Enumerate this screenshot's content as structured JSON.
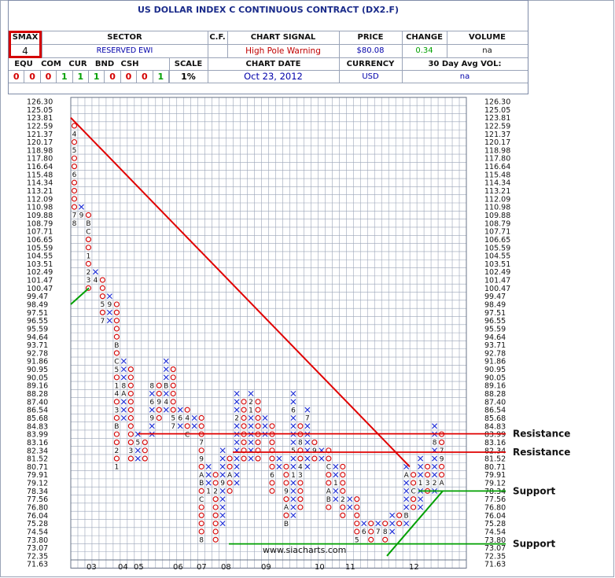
{
  "header": {
    "title": "US DOLLAR INDEX C CONTINUOUS CONTRACT (DX2.F)",
    "smax_label": "SMAX",
    "smax_value": "4",
    "sector_label": "SECTOR",
    "sector_value": "RESERVED EWI",
    "cf_label": "C.F.",
    "signal_label": "CHART SIGNAL",
    "signal_value": "High Pole Warning",
    "price_label": "PRICE",
    "price_value": "$80.08",
    "change_label": "CHANGE",
    "change_value": "0.34",
    "volume_label": "VOLUME",
    "volume_value": "na",
    "asset_labels": [
      "EQU",
      "COM",
      "CUR",
      "BND",
      "CSH"
    ],
    "asset_values": [
      "0",
      "0",
      "0",
      "1",
      "1",
      "1",
      "0",
      "0",
      "0",
      "1"
    ],
    "scale_label": "SCALE",
    "scale_value": "1%",
    "date_label": "CHART DATE",
    "date_value": "Oct 23, 2012",
    "currency_label": "CURRENCY",
    "currency_value": "USD",
    "avgvol_label": "30 Day Avg VOL:",
    "avgvol_value": "na"
  },
  "colors": {
    "o_mark": "#d40000",
    "x_mark": "#1a2bd6",
    "trend_red": "#e00000",
    "trend_green": "#00a000",
    "resistance": "#e00000",
    "support": "#00a000",
    "grid": "#9aa4b8",
    "change_text": "#00a000",
    "signal_text": "#c00000"
  },
  "chart_data": {
    "type": "point-and-figure",
    "box_scale": "1%",
    "price_levels": [
      "126.30",
      "125.05",
      "123.81",
      "122.59",
      "121.37",
      "120.17",
      "118.98",
      "117.80",
      "116.64",
      "115.48",
      "114.34",
      "113.21",
      "112.09",
      "110.98",
      "109.88",
      "108.79",
      "107.71",
      "106.65",
      "105.59",
      "104.55",
      "103.51",
      "102.49",
      "101.47",
      "100.47",
      "99.47",
      "98.49",
      "97.51",
      "96.55",
      "95.59",
      "94.64",
      "93.71",
      "92.78",
      "91.86",
      "90.95",
      "90.05",
      "89.16",
      "88.28",
      "87.40",
      "86.54",
      "85.68",
      "84.83",
      "83.99",
      "83.16",
      "82.34",
      "81.52",
      "80.71",
      "79.91",
      "79.12",
      "78.34",
      "77.56",
      "76.80",
      "76.04",
      "75.28",
      "74.54",
      "73.80",
      "73.07",
      "72.35",
      "71.63"
    ],
    "x_axis_labels": [
      "03",
      "04",
      "05",
      "06",
      "07",
      "08",
      "09",
      "10",
      "11",
      "12"
    ],
    "columns": [
      {
        "type": "O",
        "top": "122.59",
        "bottom": "108.79",
        "markers": {
          "121.37": "4",
          "118.98": "5",
          "115.48": "6",
          "109.88": "7",
          "108.79": "8"
        }
      },
      {
        "type": "X",
        "top": "110.98",
        "bottom": "109.88",
        "markers": {
          "109.88": "9"
        }
      },
      {
        "type": "O",
        "top": "109.88",
        "bottom": "100.47",
        "markers": {
          "108.79": "B",
          "107.71": "C",
          "104.55": "1",
          "102.49": "2",
          "101.47": "3"
        }
      },
      {
        "type": "X",
        "top": "102.49",
        "bottom": "101.47",
        "markers": {
          "101.47": "4"
        }
      },
      {
        "type": "O",
        "top": "101.47",
        "bottom": "96.55",
        "markers": {
          "98.49": "5",
          "96.55": "7"
        }
      },
      {
        "type": "X",
        "top": "99.47",
        "bottom": "96.55",
        "markers": {
          "98.49": "9"
        }
      },
      {
        "type": "O",
        "top": "98.49",
        "bottom": "80.71",
        "markers": {
          "93.71": "B",
          "91.86": "C",
          "90.95": "5",
          "89.16": "1",
          "88.28": "4",
          "86.54": "3",
          "84.83": "B",
          "82.34": "2",
          "80.71": "1"
        }
      },
      {
        "type": "X",
        "top": "91.86",
        "bottom": "85.68",
        "markers": {
          "89.16": "8",
          "88.28": "A"
        }
      },
      {
        "type": "O",
        "top": "90.95",
        "bottom": "81.52",
        "markers": {
          "82.34": "3"
        }
      },
      {
        "type": "X",
        "top": "83.99",
        "bottom": "81.52",
        "markers": {
          "83.16": "5"
        }
      },
      {
        "type": "O",
        "top": "83.16",
        "bottom": "81.52"
      },
      {
        "type": "X",
        "top": "89.16",
        "bottom": "83.99",
        "markers": {
          "89.16": "8",
          "87.40": "6",
          "85.68": "9"
        }
      },
      {
        "type": "O",
        "top": "89.16",
        "bottom": "85.68",
        "markers": {
          "87.40": "9"
        }
      },
      {
        "type": "X",
        "top": "91.86",
        "bottom": "86.54",
        "markers": {
          "89.16": "B",
          "87.40": "4"
        }
      },
      {
        "type": "O",
        "top": "90.95",
        "bottom": "84.83",
        "markers": {
          "85.68": "5",
          "84.83": "7"
        }
      },
      {
        "type": "X",
        "top": "86.54",
        "bottom": "84.83",
        "markers": {
          "85.68": "6"
        }
      },
      {
        "type": "O",
        "top": "86.54",
        "bottom": "83.99",
        "markers": {
          "85.68": "4",
          "83.99": "C"
        }
      },
      {
        "type": "X",
        "top": "85.68",
        "bottom": "84.83"
      },
      {
        "type": "O",
        "top": "85.68",
        "bottom": "73.80",
        "markers": {
          "83.16": "7",
          "81.52": "9",
          "79.91": "A",
          "79.12": "B",
          "77.56": "C",
          "73.80": "8"
        }
      },
      {
        "type": "X",
        "top": "80.71",
        "bottom": "78.34",
        "markers": {
          "78.34": "1"
        }
      },
      {
        "type": "O",
        "top": "79.91",
        "bottom": "73.80",
        "markers": {
          "78.34": "2"
        }
      },
      {
        "type": "X",
        "top": "82.34",
        "bottom": "75.28",
        "markers": {
          "79.12": "9"
        }
      },
      {
        "type": "O",
        "top": "81.52",
        "bottom": "78.34",
        "markers": {
          "79.91": "A"
        }
      },
      {
        "type": "X",
        "top": "88.28",
        "bottom": "79.12",
        "markers": {
          "85.68": "2"
        }
      },
      {
        "type": "O",
        "top": "87.40",
        "bottom": "81.52",
        "markers": {
          "88.28": "3"
        }
      },
      {
        "type": "X",
        "top": "88.28",
        "bottom": "81.52",
        "markers": {
          "87.40": "2",
          "86.54": "1"
        }
      },
      {
        "type": "O",
        "top": "87.40",
        "bottom": "81.52"
      },
      {
        "type": "X",
        "top": "85.68",
        "bottom": "83.99"
      },
      {
        "type": "O",
        "top": "84.83",
        "bottom": "78.34",
        "markers": {
          "79.91": "6"
        }
      },
      {
        "type": "X",
        "top": "81.52",
        "bottom": "80.71",
        "markers": {
          "79.91": "7"
        }
      },
      {
        "type": "O",
        "top": "80.71",
        "bottom": "75.28",
        "markers": {
          "78.34": "9",
          "76.80": "A",
          "75.28": "B",
          "74.54": "C"
        }
      },
      {
        "type": "X",
        "top": "88.28",
        "bottom": "76.04",
        "markers": {
          "79.91": "1",
          "86.54": "6",
          "82.34": "5"
        }
      },
      {
        "type": "O",
        "top": "84.83",
        "bottom": "76.80",
        "markers": {
          "79.91": "3",
          "80.71": "4",
          "83.16": "8"
        }
      },
      {
        "type": "X",
        "top": "86.54",
        "bottom": "80.71",
        "markers": {
          "85.68": "7"
        }
      },
      {
        "type": "O",
        "top": "83.16",
        "bottom": "81.52",
        "markers": {
          "82.34": "9"
        }
      },
      {
        "type": "X",
        "top": "82.34",
        "bottom": "81.52"
      },
      {
        "type": "O",
        "top": "82.34",
        "bottom": "76.80",
        "markers": {
          "80.71": "C",
          "78.34": "A",
          "77.56": "B"
        }
      },
      {
        "type": "X",
        "top": "80.71",
        "bottom": "77.56",
        "markers": {
          "79.12": "1"
        }
      },
      {
        "type": "O",
        "top": "80.71",
        "bottom": "76.04",
        "markers": {
          "77.56": "2"
        }
      },
      {
        "type": "X",
        "top": "77.56",
        "bottom": "76.80"
      },
      {
        "type": "O",
        "top": "77.56",
        "bottom": "73.80",
        "markers": {
          "73.80": "5"
        }
      },
      {
        "type": "X",
        "top": "75.28",
        "bottom": "74.54",
        "markers": {
          "74.54": "6"
        }
      },
      {
        "type": "O",
        "top": "75.28",
        "bottom": "73.80"
      },
      {
        "type": "X",
        "top": "75.28",
        "bottom": "74.54",
        "markers": {
          "74.54": "7"
        }
      },
      {
        "type": "O",
        "top": "75.28",
        "bottom": "73.80",
        "markers": {
          "74.54": "8"
        }
      },
      {
        "type": "X",
        "top": "76.04",
        "bottom": "74.54",
        "markers": {
          "73.80": "9"
        }
      },
      {
        "type": "O",
        "top": "76.04",
        "bottom": "75.28"
      },
      {
        "type": "X",
        "top": "80.71",
        "bottom": "75.28",
        "markers": {
          "79.91": "A",
          "76.04": "B"
        }
      },
      {
        "type": "O",
        "top": "79.91",
        "bottom": "76.80",
        "markers": {
          "78.34": "C"
        }
      },
      {
        "type": "X",
        "top": "81.52",
        "bottom": "76.80",
        "markers": {
          "79.12": "1"
        }
      },
      {
        "type": "O",
        "top": "80.71",
        "bottom": "78.34",
        "markers": {
          "79.12": "3"
        }
      },
      {
        "type": "X",
        "top": "84.83",
        "bottom": "78.34",
        "markers": {
          "79.12": "2",
          "83.16": "8"
        }
      },
      {
        "type": "O",
        "top": "83.99",
        "bottom": "79.12",
        "markers": {
          "82.34": "7",
          "81.52": "9",
          "79.12": "A"
        }
      }
    ],
    "trendlines": [
      {
        "color": "red",
        "from": "123.81",
        "to": "80.71",
        "direction": "down"
      },
      {
        "color": "green",
        "from": "98.49",
        "to": "100.47",
        "direction": "up"
      },
      {
        "color": "green",
        "from": "72.35",
        "to": "78.34",
        "direction": "up"
      }
    ],
    "levels": [
      {
        "label": "Resistance",
        "value": "84.03"
      },
      {
        "label": "Resistance",
        "value": "82.16"
      },
      {
        "label": "Support",
        "value": "78.34"
      },
      {
        "label": "Support",
        "value": "73.42"
      }
    ],
    "watermark": "www.siacharts.com",
    "title": "US DOLLAR INDEX C CONTINUOUS CONTRACT (DX2.F)"
  }
}
